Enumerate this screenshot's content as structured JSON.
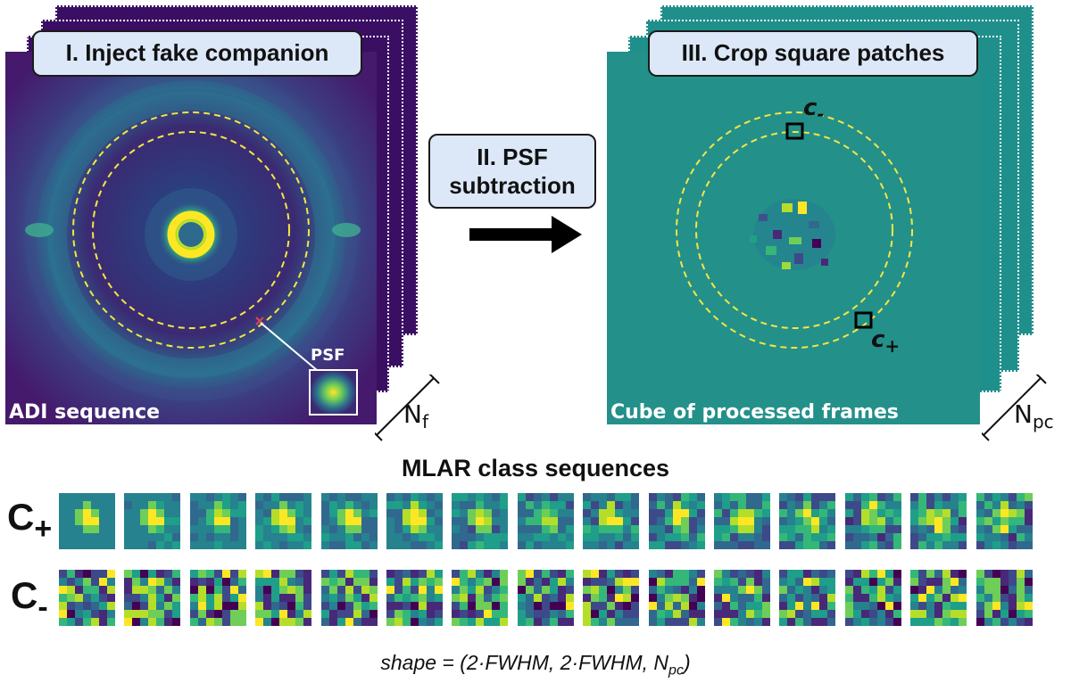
{
  "panel1": {
    "title": "I. Inject fake companion",
    "caption": "ADI sequence",
    "psf_label": "PSF",
    "count_main": "N",
    "count_sub": "f"
  },
  "step2": {
    "line1": "II. PSF",
    "line2": "subtraction"
  },
  "panel3": {
    "title": "III. Crop square patches",
    "caption": "Cube of processed frames",
    "marker_minus_main": "c",
    "marker_minus_sub": "-",
    "marker_plus_main": "c",
    "marker_plus_sub": "+",
    "count_main": "N",
    "count_sub": "pc"
  },
  "bottom": {
    "title": "MLAR class sequences",
    "row_plus_main": "C",
    "row_plus_sub": "+",
    "row_minus_main": "C",
    "row_minus_sub": "-",
    "shape_prefix": "shape = (2·FWHM, 2·FWHM, N",
    "shape_sub": "pc",
    "shape_suffix": ")"
  },
  "colors": {
    "viridis_dark": "#440154",
    "viridis_teal": "#21918c",
    "viridis_yellow": "#fde725",
    "label_box_fill": "#dce8f8",
    "ring_dash": "#f5e642"
  }
}
